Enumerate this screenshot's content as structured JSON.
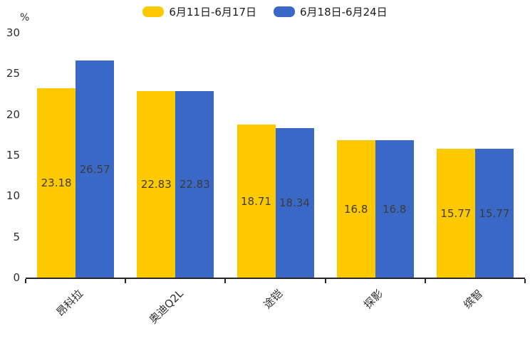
{
  "chart_data": {
    "type": "bar",
    "title": "",
    "unit_label": "%",
    "categories": [
      "昂科拉",
      "奥迪Q2L",
      "途铠",
      "探影",
      "缤智"
    ],
    "series": [
      {
        "name": "6月11日-6月17日",
        "color": "#FFC900",
        "values": [
          23.18,
          22.83,
          18.71,
          16.8,
          15.77
        ]
      },
      {
        "name": "6月18日-6月24日",
        "color": "#3A68C7",
        "values": [
          26.57,
          22.83,
          18.34,
          16.8,
          15.77
        ]
      }
    ],
    "ylabel": "%",
    "xlabel": "",
    "ylim": [
      0,
      30
    ],
    "yticks": [
      0,
      5,
      10,
      15,
      20,
      25,
      30
    ],
    "grid": false,
    "legend_position": "top",
    "value_labels": "inside-center",
    "axis_color": "#262626"
  }
}
